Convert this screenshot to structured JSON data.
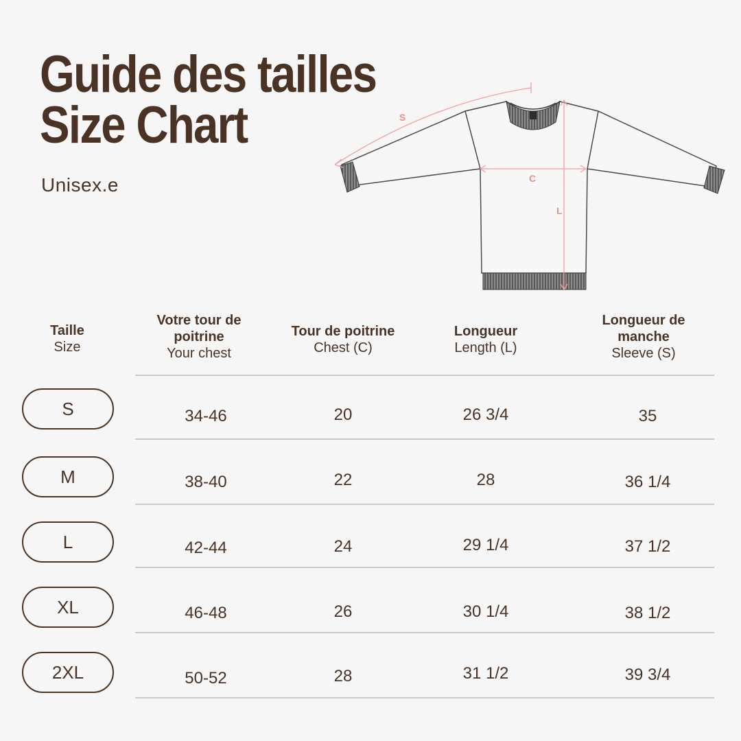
{
  "title_line1": "Guide des tailles",
  "title_line2": "Size Chart",
  "subtitle": "Unisex.e",
  "diagram_labels": {
    "sleeve": "S",
    "chest": "C",
    "length": "L"
  },
  "colors": {
    "text": "#4a3324",
    "accent": "#f0a0a0",
    "background": "#f6f6f6"
  },
  "headers": [
    {
      "fr": "Taille",
      "en": "Size"
    },
    {
      "fr": "Votre tour de poitrine",
      "en": "Your chest"
    },
    {
      "fr": "Tour de poitrine",
      "en": "Chest (C)"
    },
    {
      "fr": "Longueur",
      "en": "Length (L)"
    },
    {
      "fr": "Longueur de manche",
      "en": "Sleeve (S)"
    }
  ],
  "rows": [
    {
      "size": "S",
      "your_chest": "34-46",
      "chest": "20",
      "length": "26 3/4",
      "sleeve": "35"
    },
    {
      "size": "M",
      "your_chest": "38-40",
      "chest": "22",
      "length": "28",
      "sleeve": "36 1/4"
    },
    {
      "size": "L",
      "your_chest": "42-44",
      "chest": "24",
      "length": "29 1/4",
      "sleeve": "37 1/2"
    },
    {
      "size": "XL",
      "your_chest": "46-48",
      "chest": "26",
      "length": "30 1/4",
      "sleeve": "38 1/2"
    },
    {
      "size": "2XL",
      "your_chest": "50-52",
      "chest": "28",
      "length": "31 1/2",
      "sleeve": "39 3/4"
    }
  ]
}
